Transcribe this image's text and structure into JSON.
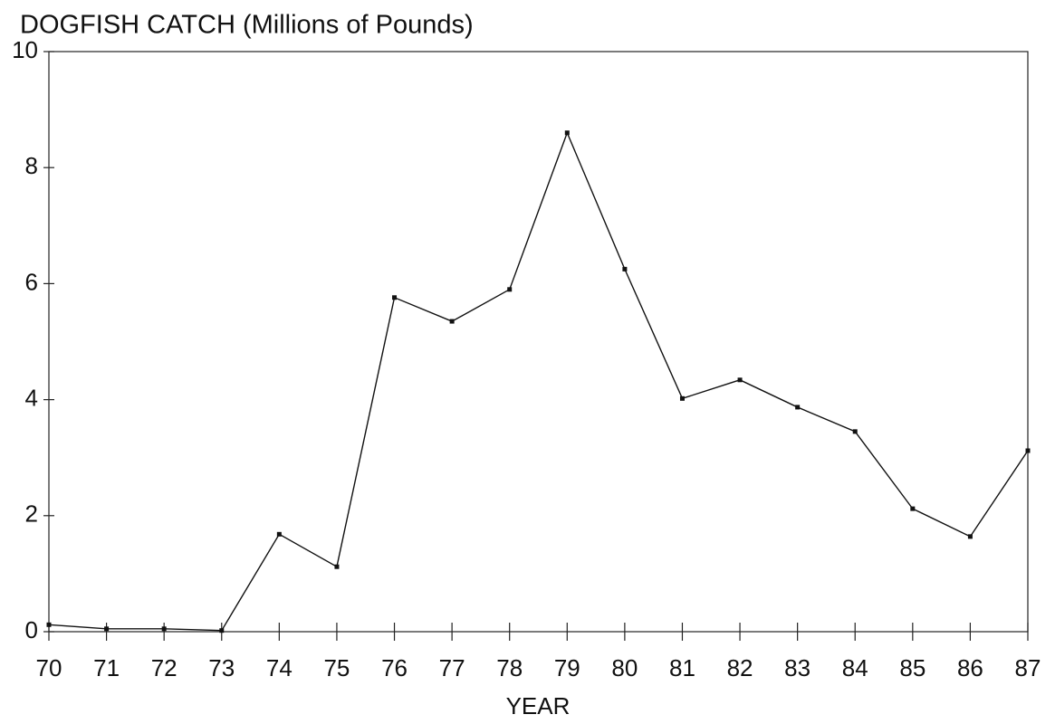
{
  "chart_data": {
    "type": "line",
    "title": "DOGFISH CATCH (Millions of Pounds)",
    "x_label": "YEAR",
    "x": [
      70,
      71,
      72,
      73,
      74,
      75,
      76,
      77,
      78,
      79,
      80,
      81,
      82,
      83,
      84,
      85,
      86,
      87
    ],
    "series": [
      {
        "name": "Dogfish catch",
        "color": "#111111",
        "values": [
          0.12,
          0.05,
          0.05,
          0.02,
          1.68,
          1.12,
          5.76,
          5.35,
          5.9,
          8.6,
          6.25,
          4.02,
          4.34,
          3.87,
          3.45,
          2.12,
          1.64,
          3.12
        ]
      }
    ],
    "xlim": [
      70,
      87
    ],
    "xticks": [
      70,
      71,
      72,
      73,
      74,
      75,
      76,
      77,
      78,
      79,
      80,
      81,
      82,
      83,
      84,
      85,
      86,
      87
    ],
    "ylim": [
      0,
      10
    ],
    "yticks": [
      0,
      2,
      4,
      6,
      8,
      10
    ],
    "grid": false
  }
}
